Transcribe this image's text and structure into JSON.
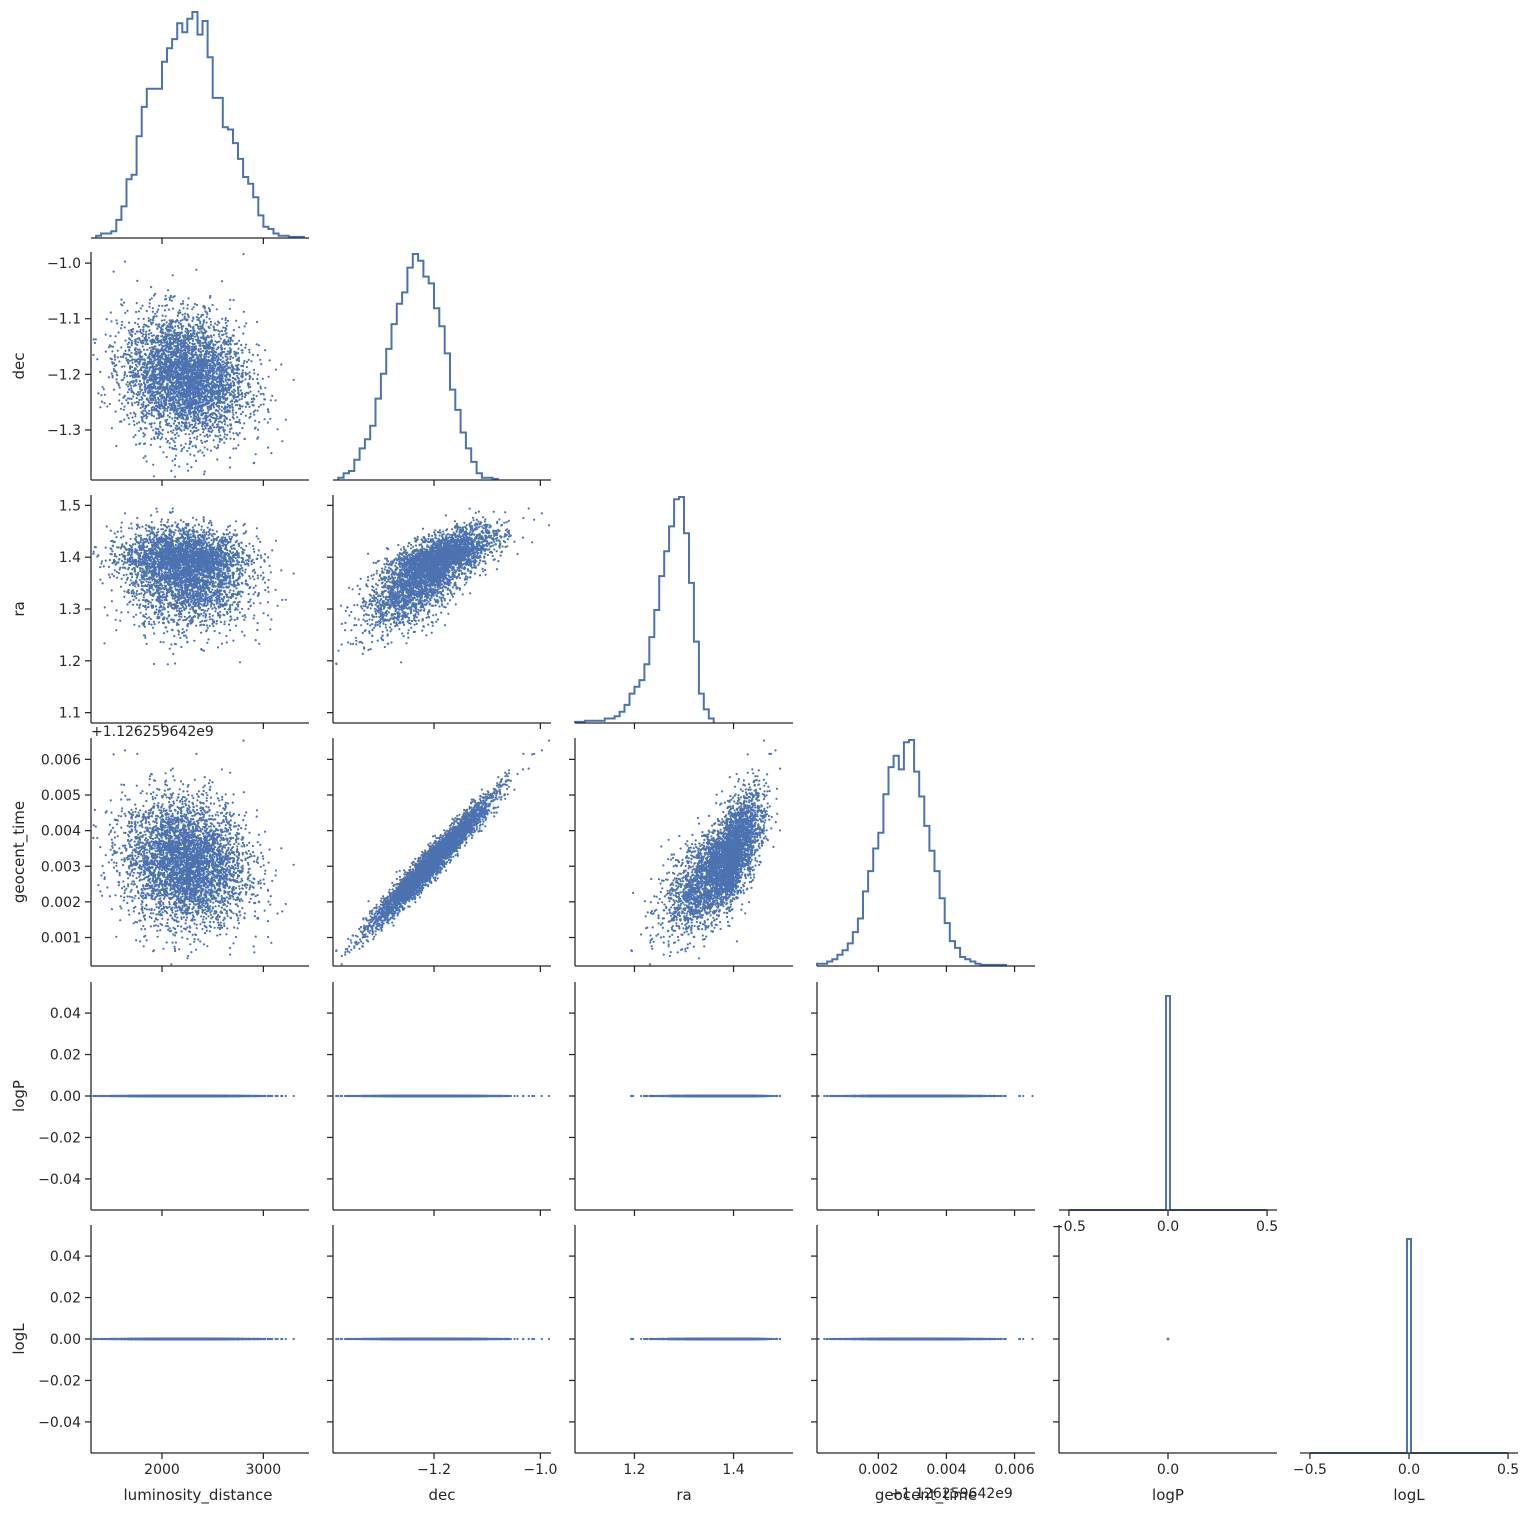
{
  "chart_data": {
    "type": "scatter",
    "layout": "corner-pairplot",
    "variables": [
      "luminosity_distance",
      "dec",
      "ra",
      "geocent_time",
      "logP",
      "logL"
    ],
    "color": "#4c72b0",
    "offset_text": "+1.126259642e9",
    "axis_ranges": {
      "luminosity_distance": [
        1300,
        3450
      ],
      "dec": [
        -1.39,
        -0.98
      ],
      "ra": [
        1.08,
        1.52
      ],
      "geocent_time": [
        0.0002,
        0.0066
      ],
      "logP": [
        -0.055,
        0.055
      ],
      "logL": [
        -0.055,
        0.055
      ]
    },
    "ticks": {
      "luminosity_distance": [
        "2000",
        "3000"
      ],
      "dec": [
        "−1.3",
        "−1.2",
        "−1.1",
        "−1.0"
      ],
      "ra": [
        "1.1",
        "1.2",
        "1.3",
        "1.4",
        "1.5"
      ],
      "geocent_time": [
        "0.001",
        "0.002",
        "0.003",
        "0.004",
        "0.005",
        "0.006"
      ],
      "logP": [
        "−0.04",
        "−0.02",
        "0.00",
        "0.02",
        "0.04"
      ],
      "logL": [
        "−0.04",
        "−0.02",
        "0.00",
        "0.02",
        "0.04"
      ]
    },
    "diag_ticks": {
      "luminosity_distance": [
        "2000",
        "3000"
      ],
      "dec": [
        "−1.2",
        "−1.0"
      ],
      "ra": [
        "1.2",
        "1.4"
      ],
      "geocent_time": [
        "0.002",
        "0.004",
        "0.006"
      ],
      "logP": [
        "−0.5",
        "0.0",
        "0.5"
      ],
      "logL": [
        "−0.5",
        "0.0",
        "0.5"
      ]
    },
    "marginals": {
      "luminosity_distance": {
        "bin_edges_start": 1350,
        "bin_width": 50,
        "counts": [
          1,
          2,
          2,
          3,
          8,
          14,
          26,
          28,
          45,
          58,
          66,
          66,
          66,
          78,
          84,
          88,
          95,
          91,
          97,
          100,
          90,
          96,
          80,
          62,
          62,
          49,
          48,
          42,
          35,
          27,
          24,
          18,
          10,
          5,
          4,
          2,
          1,
          1,
          0.5,
          0.5,
          0.5
        ]
      },
      "dec": {
        "bin_edges_start": -1.38,
        "bin_width": 0.01,
        "counts": [
          1,
          3,
          4,
          9,
          14,
          18,
          24,
          36,
          47,
          58,
          69,
          78,
          83,
          94,
          100,
          97,
          90,
          87,
          76,
          68,
          56,
          40,
          31,
          21,
          14,
          8,
          3,
          1,
          1,
          0.5
        ]
      },
      "ra": {
        "bin_edges_start": 1.08,
        "bin_width": 0.01,
        "counts": [
          0.5,
          0.5,
          1,
          1,
          1,
          1,
          2,
          2,
          3,
          5,
          8,
          13,
          16,
          19,
          26,
          38,
          50,
          65,
          76,
          87,
          99,
          100,
          84,
          62,
          36,
          13,
          6,
          2
        ]
      },
      "geocent_time": {
        "bin_edges_start": 0.0002,
        "bin_width": 0.00015,
        "counts": [
          1,
          1,
          2,
          3,
          5,
          7,
          10,
          15,
          21,
          33,
          42,
          52,
          59,
          76,
          88,
          93,
          87,
          99,
          100,
          86,
          75,
          62,
          51,
          42,
          30,
          19,
          11,
          8,
          4,
          3,
          2,
          1,
          0.5,
          0.5,
          0.5,
          0.5,
          0.5
        ]
      },
      "logP": {
        "bin_edges_start": -0.5,
        "bin_width": 0.02,
        "peak_value": 0.0,
        "peak_count": 100
      },
      "logL": {
        "bin_edges_start": -0.5,
        "bin_width": 0.02,
        "peak_value": 0.0,
        "peak_count": 100
      }
    },
    "scatter_stats": {
      "luminosity_distance": {
        "mean": 2230,
        "sd": 300
      },
      "dec": {
        "mean": -1.205,
        "sd": 0.055
      },
      "ra": {
        "mean": 1.385,
        "sd": 0.045,
        "skew": "left"
      },
      "geocent_time": {
        "mean": 0.0031,
        "sd": 0.00088
      },
      "logP": {
        "mean": 0.0,
        "sd": 0.0
      },
      "logL": {
        "mean": 0.0,
        "sd": 0.0
      }
    },
    "correlations": {
      "dec|luminosity_distance": -0.12,
      "ra|luminosity_distance": -0.05,
      "ra|dec": 0.72,
      "geocent_time|luminosity_distance": -0.15,
      "geocent_time|dec": 0.97,
      "geocent_time|ra": 0.68
    },
    "xlabels": [
      "luminosity_distance",
      "dec",
      "ra",
      "geocent_time",
      "logP",
      "logL"
    ],
    "ylabels": [
      "",
      "dec",
      "ra",
      "geocent_time",
      "logP",
      "logL"
    ],
    "grid": false,
    "legend": "none"
  }
}
